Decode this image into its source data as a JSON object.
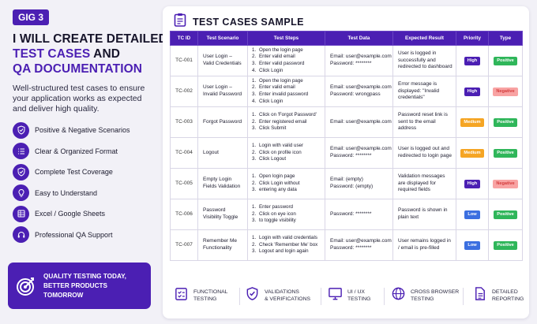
{
  "left": {
    "gig_badge": "GIG 3",
    "headline_line1": "I WILL CREATE DETAILED",
    "headline_line2_accent": "TEST CASES",
    "headline_line2_rest": " AND",
    "headline_line3": "QA DOCUMENTATION",
    "tagline": "Well-structured test cases to ensure your application works as expected and deliver high quality.",
    "features": [
      {
        "icon": "shield-check-icon",
        "label": "Positive & Negative Scenarios"
      },
      {
        "icon": "list-icon",
        "label": "Clear & Organized Format"
      },
      {
        "icon": "shield-check-icon",
        "label": "Complete Test Coverage"
      },
      {
        "icon": "lightbulb-icon",
        "label": "Easy to Understand"
      },
      {
        "icon": "spreadsheet-icon",
        "label": "Excel / Google Sheets"
      },
      {
        "icon": "support-icon",
        "label": "Professional QA Support"
      }
    ],
    "banner_line1": "QUALITY TESTING TODAY,",
    "banner_line2": "BETTER PRODUCTS TOMORROW"
  },
  "card": {
    "title": "TEST CASES SAMPLE",
    "columns": [
      "TC ID",
      "Test Scenario",
      "Test Steps",
      "Test Data",
      "Expected Result",
      "Priority",
      "Type"
    ],
    "rows": [
      {
        "id": "TC-001",
        "scenario": "User Login – Valid Credentials",
        "steps": [
          "Open the login page",
          "Enter valid email",
          "Enter valid password",
          "Click Login"
        ],
        "data": [
          "Email: user@example.com",
          "Password: ********"
        ],
        "expected": "User is logged in successfully and redirected to dashboard",
        "priority": "High",
        "type": "Positive"
      },
      {
        "id": "TC-002",
        "scenario": "User Login – Invalid Password",
        "steps": [
          "Open the login page",
          "Enter valid email",
          "Enter invalid password",
          "Click Login"
        ],
        "data": [
          "Email: user@example.com",
          "Password: wrongpass"
        ],
        "expected": "Error message is displayed: \"Invalid credentials\"",
        "priority": "High",
        "type": "Negative"
      },
      {
        "id": "TC-003",
        "scenario": "Forgot Password",
        "steps": [
          "Click on 'Forgot Password'",
          "Enter registered email",
          "Click Submit"
        ],
        "data": [
          "Email: user@example.com"
        ],
        "expected": "Password reset link is sent to the email address",
        "priority": "Medium",
        "type": "Positive"
      },
      {
        "id": "TC-004",
        "scenario": "Logout",
        "steps": [
          "Login with valid user",
          "Click on profile icon",
          "Click Logout"
        ],
        "data": [
          "Email: user@example.com",
          "Password: ********"
        ],
        "expected": "User is logged out and redirected to login page",
        "priority": "Medium",
        "type": "Positive"
      },
      {
        "id": "TC-005",
        "scenario": "Empty Login Fields Validation",
        "steps": [
          "Open login page",
          "Click Login without",
          "entering any data"
        ],
        "data": [
          "Email: (empty)",
          "Password: (empty)"
        ],
        "expected": "Validation messages are displayed for required fields",
        "priority": "High",
        "type": "Negative"
      },
      {
        "id": "TC-006",
        "scenario": "Password Visibility Toggle",
        "steps": [
          "Enter password",
          "Click on eye icon",
          "to toggle visibility"
        ],
        "data": [
          "Password: ********"
        ],
        "expected": "Password is shown in plain text",
        "priority": "Low",
        "type": "Positive"
      },
      {
        "id": "TC-007",
        "scenario": "Remember Me Functionality",
        "steps": [
          "Login with valid credentials",
          "Check 'Remember Me' box",
          "Logout and login again"
        ],
        "data": [
          "Email: user@example.com",
          "Password: ********"
        ],
        "expected": "User remains logged in / email is pre-filled",
        "priority": "Low",
        "type": "Positive"
      }
    ]
  },
  "footer": [
    {
      "icon": "clipboard-check-icon",
      "line1": "FUNCTIONAL",
      "line2": "TESTING"
    },
    {
      "icon": "shield-check-icon",
      "line1": "VALIDATIONS",
      "line2": "& VERIFICATIONS"
    },
    {
      "icon": "monitor-icon",
      "line1": "UI / UX",
      "line2": "TESTING"
    },
    {
      "icon": "globe-icon",
      "line1": "CROSS BROWSER",
      "line2": "TESTING"
    },
    {
      "icon": "document-icon",
      "line1": "DETAILED",
      "line2": "REPORTING"
    }
  ],
  "colors": {
    "accent": "#4b1fb3",
    "priority_high": "#4b1fb3",
    "priority_medium": "#f5a524",
    "priority_low": "#3b6fe0",
    "type_positive": "#2fb65a",
    "type_negative": "#f8a3a3",
    "type_negative_text": "#d43c3c"
  }
}
